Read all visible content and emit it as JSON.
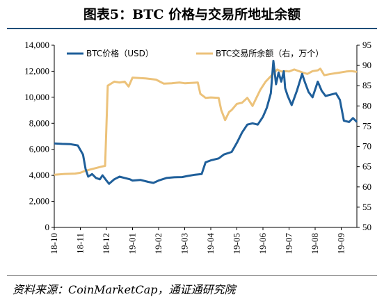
{
  "title": "图表5：BTC 价格与交易所地址余额",
  "source": "资料来源：CoinMarketCap，通证通研究院",
  "colors": {
    "price": "#1f5f9a",
    "balance": "#ecc27a",
    "axis": "#000000"
  },
  "chart_data": {
    "type": "line",
    "left_axis": {
      "ylim": [
        0,
        14000
      ],
      "ticks": [
        "0",
        "2,000",
        "4,000",
        "6,000",
        "8,000",
        "10,000",
        "12,000",
        "14,000"
      ]
    },
    "right_axis": {
      "ylim": [
        50,
        95
      ],
      "ticks": [
        "50",
        "55",
        "60",
        "65",
        "70",
        "75",
        "80",
        "85",
        "90",
        "95"
      ]
    },
    "x_ticks": [
      "18-10",
      "18-11",
      "18-12",
      "19-01",
      "19-02",
      "19-03",
      "19-04",
      "19-05",
      "19-06",
      "19-07",
      "19-08",
      "19-09"
    ],
    "x_range": [
      0,
      11.6
    ],
    "legend_position": "top",
    "series": [
      {
        "name": "BTC价格（USD）",
        "axis": "left",
        "color": "#1f5f9a",
        "points": [
          [
            0,
            6450
          ],
          [
            0.3,
            6420
          ],
          [
            0.6,
            6400
          ],
          [
            0.9,
            6300
          ],
          [
            1.1,
            5600
          ],
          [
            1.2,
            4500
          ],
          [
            1.3,
            3900
          ],
          [
            1.45,
            4100
          ],
          [
            1.6,
            3800
          ],
          [
            1.75,
            3700
          ],
          [
            1.85,
            4000
          ],
          [
            2.0,
            3600
          ],
          [
            2.1,
            3350
          ],
          [
            2.3,
            3700
          ],
          [
            2.5,
            3900
          ],
          [
            2.7,
            3800
          ],
          [
            2.9,
            3700
          ],
          [
            3.0,
            3600
          ],
          [
            3.3,
            3650
          ],
          [
            3.6,
            3500
          ],
          [
            3.8,
            3420
          ],
          [
            4.0,
            3600
          ],
          [
            4.3,
            3800
          ],
          [
            4.6,
            3850
          ],
          [
            4.9,
            3870
          ],
          [
            5.1,
            3950
          ],
          [
            5.4,
            4050
          ],
          [
            5.65,
            4100
          ],
          [
            5.8,
            5000
          ],
          [
            6.0,
            5150
          ],
          [
            6.3,
            5300
          ],
          [
            6.5,
            5600
          ],
          [
            6.8,
            5800
          ],
          [
            7.0,
            6500
          ],
          [
            7.2,
            7300
          ],
          [
            7.4,
            7900
          ],
          [
            7.6,
            8000
          ],
          [
            7.8,
            7900
          ],
          [
            8.0,
            8500
          ],
          [
            8.15,
            9200
          ],
          [
            8.3,
            10300
          ],
          [
            8.4,
            12800
          ],
          [
            8.5,
            11000
          ],
          [
            8.6,
            11900
          ],
          [
            8.7,
            11200
          ],
          [
            8.8,
            12000
          ],
          [
            8.85,
            10700
          ],
          [
            8.95,
            10100
          ],
          [
            9.1,
            9400
          ],
          [
            9.3,
            10500
          ],
          [
            9.5,
            11800
          ],
          [
            9.6,
            11200
          ],
          [
            9.75,
            10400
          ],
          [
            9.9,
            10000
          ],
          [
            10.1,
            11200
          ],
          [
            10.25,
            10500
          ],
          [
            10.4,
            10100
          ],
          [
            10.6,
            10200
          ],
          [
            10.8,
            10300
          ],
          [
            10.95,
            9800
          ],
          [
            11.1,
            8200
          ],
          [
            11.3,
            8100
          ],
          [
            11.45,
            8400
          ],
          [
            11.6,
            8100
          ]
        ]
      },
      {
        "name": "BTC交易所余额（右，万个）",
        "axis": "right",
        "color": "#ecc27a",
        "points": [
          [
            0,
            63
          ],
          [
            0.4,
            63.2
          ],
          [
            0.8,
            63.3
          ],
          [
            1.0,
            63.5
          ],
          [
            1.2,
            64
          ],
          [
            1.5,
            64.5
          ],
          [
            1.8,
            65
          ],
          [
            1.95,
            65.2
          ],
          [
            2.05,
            85
          ],
          [
            2.3,
            86
          ],
          [
            2.5,
            85.8
          ],
          [
            2.7,
            86
          ],
          [
            2.85,
            84.8
          ],
          [
            3.0,
            87
          ],
          [
            3.5,
            86.8
          ],
          [
            3.9,
            86.5
          ],
          [
            4.2,
            85.5
          ],
          [
            4.5,
            85.6
          ],
          [
            4.8,
            85.8
          ],
          [
            5.0,
            85.6
          ],
          [
            5.3,
            85.7
          ],
          [
            5.5,
            85.8
          ],
          [
            5.6,
            83
          ],
          [
            5.8,
            82
          ],
          [
            6.0,
            82.1
          ],
          [
            6.3,
            82
          ],
          [
            6.4,
            79
          ],
          [
            6.55,
            76.5
          ],
          [
            6.7,
            78.5
          ],
          [
            6.8,
            79
          ],
          [
            7.0,
            80.5
          ],
          [
            7.2,
            80.8
          ],
          [
            7.4,
            82
          ],
          [
            7.5,
            81
          ],
          [
            7.6,
            80
          ],
          [
            7.75,
            82
          ],
          [
            7.9,
            84
          ],
          [
            8.1,
            86
          ],
          [
            8.25,
            87
          ],
          [
            8.4,
            88
          ],
          [
            8.55,
            89
          ],
          [
            8.7,
            88.5
          ],
          [
            8.9,
            88.6
          ],
          [
            9.0,
            88.5
          ],
          [
            9.2,
            89
          ],
          [
            9.5,
            88.3
          ],
          [
            9.7,
            87.9
          ],
          [
            9.9,
            88.6
          ],
          [
            10.1,
            88.8
          ],
          [
            10.2,
            89.2
          ],
          [
            10.35,
            87.6
          ],
          [
            10.6,
            87.9
          ],
          [
            10.9,
            88.2
          ],
          [
            11.2,
            88.5
          ],
          [
            11.4,
            88.6
          ],
          [
            11.6,
            88.4
          ]
        ]
      }
    ]
  }
}
